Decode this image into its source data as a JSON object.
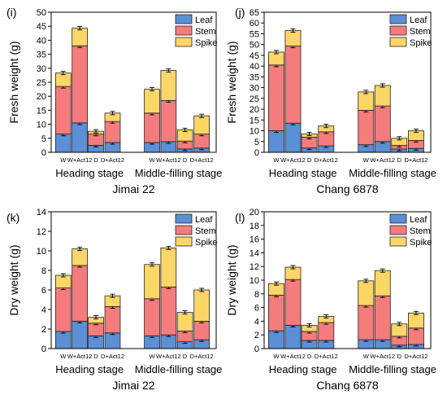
{
  "colors": {
    "leaf": "#5b8fd6",
    "stem": "#f47c7c",
    "spike": "#fcd667",
    "bar_edge": "#222222"
  },
  "chart_data": [
    {
      "panel_label": "(i)",
      "type": "bar",
      "stacked": true,
      "ylabel": "Fresh weight (g)",
      "ylim": [
        0,
        50
      ],
      "yticks": [
        "0",
        "5",
        "10",
        "15",
        "20",
        "25",
        "30",
        "35",
        "40",
        "45",
        "50"
      ],
      "categories": [
        "W",
        "W+Act12",
        "D",
        "D+Act12",
        "W",
        "W+Act12",
        "D",
        "D+Act12"
      ],
      "groups": [
        "Heading stage",
        "Middle-filling stage"
      ],
      "cultivar": "Jimai 22",
      "legend": {
        "position": "top-right",
        "entries": [
          "Leaf",
          "Stem",
          "Spike"
        ]
      },
      "series": [
        {
          "name": "Leaf",
          "values": [
            6.5,
            10.5,
            2.5,
            3.5,
            3.5,
            3.8,
            1.2,
            1.5
          ]
        },
        {
          "name": "Stem",
          "values": [
            17.0,
            27.5,
            4.0,
            7.5,
            10.5,
            14.7,
            2.8,
            5.0
          ]
        },
        {
          "name": "Spike",
          "values": [
            4.8,
            6.3,
            1.0,
            3.0,
            8.5,
            10.7,
            4.0,
            6.5
          ]
        }
      ]
    },
    {
      "panel_label": "(j)",
      "type": "bar",
      "stacked": true,
      "ylabel": "Fresh weight (g)",
      "ylim": [
        0,
        65
      ],
      "yticks": [
        "0",
        "5",
        "10",
        "15",
        "20",
        "25",
        "30",
        "35",
        "40",
        "45",
        "50",
        "55",
        "60",
        "65"
      ],
      "categories": [
        "W",
        "W+Act12",
        "D",
        "D+Act12",
        "W",
        "W+Act12",
        "D",
        "D+Act12"
      ],
      "groups": [
        "Heading stage",
        "Middle-filling stage"
      ],
      "cultivar": "Chang 6878",
      "legend": {
        "position": "top-right",
        "entries": [
          "Leaf",
          "Stem",
          "Spike"
        ]
      },
      "series": [
        {
          "name": "Leaf",
          "values": [
            10.0,
            13.5,
            2.0,
            3.0,
            3.5,
            5.0,
            1.5,
            1.8
          ]
        },
        {
          "name": "Stem",
          "values": [
            30.5,
            35.8,
            5.0,
            6.5,
            16.0,
            16.5,
            1.7,
            3.7
          ]
        },
        {
          "name": "Spike",
          "values": [
            6.0,
            7.2,
            1.5,
            2.7,
            8.5,
            9.5,
            3.3,
            4.5
          ]
        }
      ]
    },
    {
      "panel_label": "(k)",
      "type": "bar",
      "stacked": true,
      "ylabel": "Dry weight (g)",
      "ylim": [
        0,
        14
      ],
      "yticks": [
        "0",
        "2",
        "4",
        "6",
        "8",
        "10",
        "12",
        "14"
      ],
      "categories": [
        "W",
        "W+Act12",
        "D",
        "D+Act12",
        "W",
        "W+Act12",
        "D",
        "D+Act12"
      ],
      "groups": [
        "Heading stage",
        "Middle-filling stage"
      ],
      "cultivar": "Jimai 22",
      "legend": {
        "position": "top-right",
        "entries": [
          "Leaf",
          "Stem",
          "Spike"
        ]
      },
      "series": [
        {
          "name": "Leaf",
          "values": [
            1.75,
            2.8,
            1.3,
            1.6,
            1.3,
            1.4,
            0.7,
            0.9
          ]
        },
        {
          "name": "Stem",
          "values": [
            4.45,
            5.7,
            1.3,
            2.7,
            3.8,
            4.9,
            1.1,
            1.9
          ]
        },
        {
          "name": "Spike",
          "values": [
            1.3,
            1.7,
            0.6,
            1.1,
            3.5,
            4.0,
            1.9,
            3.2
          ]
        }
      ]
    },
    {
      "panel_label": "(l)",
      "type": "bar",
      "stacked": true,
      "ylabel": "Dry weight (g)",
      "ylim": [
        0,
        20
      ],
      "yticks": [
        "0",
        "2",
        "4",
        "6",
        "8",
        "10",
        "12",
        "14",
        "16",
        "18",
        "20"
      ],
      "categories": [
        "W",
        "W+Act12",
        "D",
        "D+Act12",
        "W",
        "W+Act12",
        "D",
        "D+Act12"
      ],
      "groups": [
        "Heading stage",
        "Middle-filling stage"
      ],
      "cultivar": "Chang 6878",
      "legend": {
        "position": "top-right",
        "entries": [
          "Leaf",
          "Stem",
          "Spike"
        ]
      },
      "series": [
        {
          "name": "Leaf",
          "values": [
            2.6,
            3.4,
            1.2,
            1.2,
            1.3,
            1.3,
            0.5,
            0.6
          ]
        },
        {
          "name": "Stem",
          "values": [
            5.2,
            6.7,
            1.3,
            2.6,
            5.0,
            6.4,
            1.3,
            2.4
          ]
        },
        {
          "name": "Spike",
          "values": [
            1.7,
            1.8,
            0.9,
            0.9,
            3.6,
            3.7,
            1.8,
            2.2
          ]
        }
      ]
    }
  ]
}
